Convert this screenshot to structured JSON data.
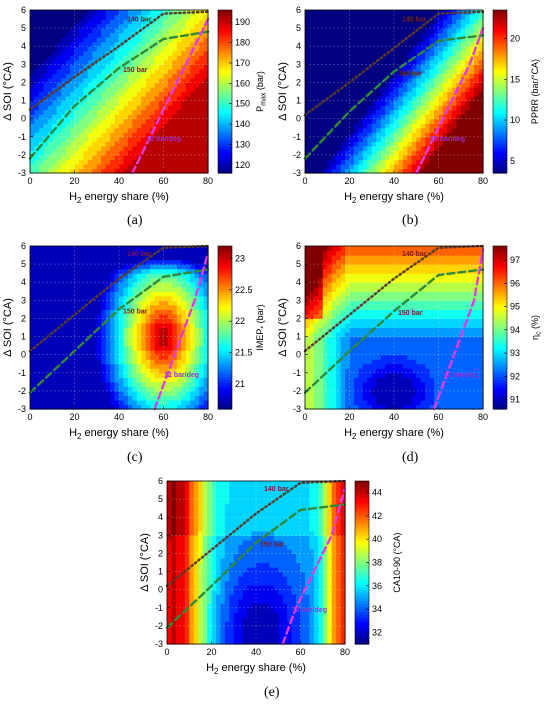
{
  "chart_data": [
    {
      "type": "heatmap",
      "panel": "(a)",
      "xlabel_main": "H",
      "xlabel_sub": "2",
      "xlabel_rest": " energy share (%)",
      "ylabel": "Δ SOI (°CA)",
      "xlim": [
        0,
        80
      ],
      "ylim": [
        -3,
        6
      ],
      "xticks": [
        "0",
        "20",
        "40",
        "60",
        "80"
      ],
      "yticks": [
        "-3",
        "-2",
        "-1",
        "0",
        "1",
        "2",
        "3",
        "4",
        "5",
        "6"
      ],
      "colorbar": {
        "label_main": "P",
        "label_sub": "max",
        "label_rest": " (bar)",
        "min": 116,
        "max": 196,
        "ticks": [
          "120",
          "130",
          "140",
          "150",
          "160",
          "170",
          "180",
          "190"
        ]
      },
      "lines": [
        {
          "style": "dotted",
          "label": "140 bar",
          "x": [
            0,
            20,
            40,
            60,
            80
          ],
          "y": [
            0.5,
            2.3,
            4.0,
            5.8,
            5.9
          ]
        },
        {
          "style": "dashed",
          "label": "150 bar",
          "x": [
            0,
            20,
            40,
            60,
            80
          ],
          "y": [
            -2.2,
            0.7,
            2.8,
            4.4,
            4.8
          ]
        },
        {
          "style": "pink-dashed",
          "label": "12 bar/deg",
          "x": [
            46,
            54,
            62,
            70,
            80
          ],
          "y": [
            -3,
            -1,
            1,
            3,
            5.5
          ]
        }
      ],
      "field": "pmax"
    },
    {
      "type": "heatmap",
      "panel": "(b)",
      "xlabel_main": "H",
      "xlabel_sub": "2",
      "xlabel_rest": " energy share (%)",
      "ylabel": "Δ SOI (°CA)",
      "xlim": [
        0,
        80
      ],
      "ylim": [
        -3,
        6
      ],
      "xticks": [
        "0",
        "20",
        "40",
        "60",
        "80"
      ],
      "yticks": [
        "-3",
        "-2",
        "-1",
        "0",
        "1",
        "2",
        "3",
        "4",
        "5",
        "6"
      ],
      "colorbar": {
        "label_main": "PPRR (bar/°CA)",
        "label_sub": "",
        "label_rest": "",
        "min": 3.5,
        "max": 23.5,
        "ticks": [
          "5",
          "10",
          "15",
          "20"
        ]
      },
      "lines": [
        {
          "style": "dotted",
          "label": "140 bar",
          "x": [
            0,
            20,
            40,
            60,
            80
          ],
          "y": [
            0.2,
            2.0,
            3.9,
            5.8,
            5.9
          ]
        },
        {
          "style": "dashed",
          "label": "150 bar",
          "x": [
            0,
            20,
            40,
            60,
            80
          ],
          "y": [
            -2.2,
            0.4,
            2.6,
            4.3,
            4.6
          ]
        },
        {
          "style": "pink-dashed",
          "label": "12 bar/deg",
          "x": [
            50,
            58,
            66,
            74,
            80
          ],
          "y": [
            -3,
            -1,
            1,
            3,
            5
          ]
        }
      ],
      "field": "pprr"
    },
    {
      "type": "heatmap",
      "panel": "(c)",
      "xlabel_main": "H",
      "xlabel_sub": "2",
      "xlabel_rest": " energy share (%)",
      "ylabel": "Δ SOI (°CA)",
      "xlim": [
        0,
        80
      ],
      "ylim": [
        -3,
        6
      ],
      "xticks": [
        "0",
        "20",
        "40",
        "60",
        "80"
      ],
      "yticks": [
        "-3",
        "-2",
        "-1",
        "0",
        "1",
        "2",
        "3",
        "4",
        "5",
        "6"
      ],
      "colorbar": {
        "label_main": "IMEP",
        "label_sub": "*",
        "label_rest": " (bar)",
        "min": 20.6,
        "max": 23.2,
        "ticks": [
          "21",
          "21.5",
          "22",
          "22.5",
          "23"
        ]
      },
      "lines": [
        {
          "style": "dotted",
          "label": "140 bar",
          "x": [
            0,
            20,
            40,
            60,
            80
          ],
          "y": [
            0.2,
            2.2,
            4.2,
            5.9,
            6.0
          ]
        },
        {
          "style": "dashed",
          "label": "150 bar",
          "x": [
            0,
            20,
            40,
            60,
            80
          ],
          "y": [
            -2.1,
            0.2,
            2.5,
            4.3,
            4.7
          ]
        },
        {
          "style": "pink-dashed",
          "label": "12 bar/deg",
          "x": [
            56,
            62,
            68,
            74,
            80
          ],
          "y": [
            -3,
            -1,
            1,
            3,
            5.6
          ]
        }
      ],
      "field": "imep"
    },
    {
      "type": "heatmap",
      "panel": "(d)",
      "xlabel_main": "H",
      "xlabel_sub": "2",
      "xlabel_rest": " energy share (%)",
      "ylabel": "Δ SOI (°CA)",
      "xlim": [
        0,
        80
      ],
      "ylim": [
        -3,
        6
      ],
      "xticks": [
        "0",
        "20",
        "40",
        "60",
        "80"
      ],
      "yticks": [
        "-3",
        "-2",
        "-1",
        "0",
        "1",
        "2",
        "3",
        "4",
        "5",
        "6"
      ],
      "colorbar": {
        "label_main": "η",
        "label_sub": "c",
        "label_rest": " (%)",
        "min": 90.6,
        "max": 97.6,
        "ticks": [
          "91",
          "92",
          "93",
          "94",
          "95",
          "96",
          "97"
        ]
      },
      "lines": [
        {
          "style": "dotted",
          "label": "140 bar",
          "x": [
            0,
            20,
            40,
            60,
            80
          ],
          "y": [
            0.2,
            2.2,
            4.2,
            5.9,
            6.0
          ]
        },
        {
          "style": "dashed",
          "label": "150 bar",
          "x": [
            0,
            20,
            40,
            60,
            80
          ],
          "y": [
            -2.1,
            0.2,
            2.4,
            4.4,
            4.7
          ]
        },
        {
          "style": "pink-dashed",
          "label": "12 bar/deg",
          "x": [
            58,
            64,
            70,
            76,
            80
          ],
          "y": [
            -3,
            -1,
            1,
            3,
            5.8
          ]
        }
      ],
      "field": "etac"
    },
    {
      "type": "heatmap",
      "panel": "(e)",
      "xlabel_main": "H",
      "xlabel_sub": "2",
      "xlabel_rest": " energy share (%)",
      "ylabel": "Δ SOI (°CA)",
      "xlim": [
        0,
        80
      ],
      "ylim": [
        -3,
        6
      ],
      "xticks": [
        "0",
        "20",
        "40",
        "60",
        "80"
      ],
      "yticks": [
        "-3",
        "-2",
        "-1",
        "0",
        "1",
        "2",
        "3",
        "4",
        "5",
        "6"
      ],
      "colorbar": {
        "label_main": "CA10-90 (°CA)",
        "label_sub": "",
        "label_rest": "",
        "min": 31,
        "max": 45,
        "ticks": [
          "32",
          "34",
          "36",
          "38",
          "40",
          "42",
          "44"
        ]
      },
      "lines": [
        {
          "style": "dotted",
          "label": "140 bar",
          "x": [
            0,
            20,
            40,
            60,
            80
          ],
          "y": [
            0.2,
            2.2,
            4.2,
            5.9,
            6.0
          ]
        },
        {
          "style": "dashed",
          "label": "150 bar",
          "x": [
            0,
            20,
            40,
            60,
            80
          ],
          "y": [
            -2.1,
            0.2,
            2.6,
            4.4,
            4.7
          ]
        },
        {
          "style": "pink-dashed",
          "label": "12 bar/deg",
          "x": [
            52,
            58,
            66,
            74,
            80
          ],
          "y": [
            -3,
            -1,
            1,
            3,
            5.6
          ]
        }
      ],
      "field": "ca1090"
    }
  ]
}
